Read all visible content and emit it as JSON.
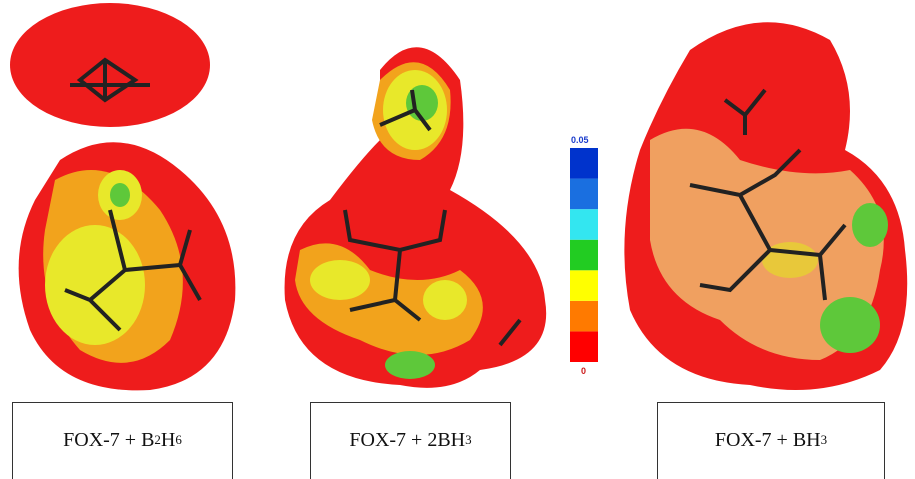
{
  "panels": [
    {
      "label": [
        {
          "text": "FOX-7 + B"
        },
        {
          "text": "2",
          "sub": true
        },
        {
          "text": "H"
        },
        {
          "text": "6",
          "sub": true
        }
      ]
    },
    {
      "label": [
        {
          "text": "FOX-7 + 2BH"
        },
        {
          "text": "3",
          "sub": true
        }
      ]
    },
    {
      "label": [
        {
          "text": "FOX-7 + BH"
        },
        {
          "text": "3",
          "sub": true
        }
      ]
    }
  ],
  "colorbar": {
    "range": [
      0,
      0.05
    ],
    "colors": [
      "#ff0000",
      "#ff7a00",
      "#ffff00",
      "#22cc22",
      "#33e6f0",
      "#1a6fe0",
      "#0033cc"
    ]
  }
}
